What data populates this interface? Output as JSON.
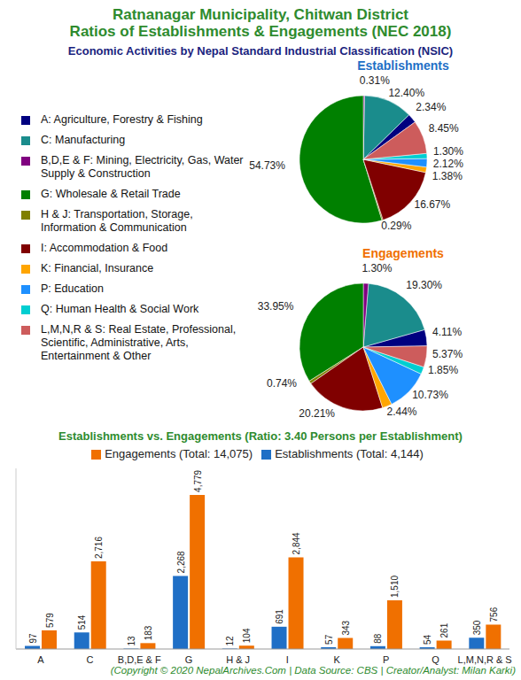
{
  "title_lines": [
    "Ratnanagar Municipality, Chitwan District",
    "Ratios of Establishments & Engagements (NEC 2018)"
  ],
  "subtitle": "Economic Activities by Nepal Standard Industrial Classification (NSIC)",
  "footer": "(Copyright © 2020 NepalArchives.Com | Data Source: CBS | Creator/Analyst: Milan Karki)",
  "chart_data": [
    {
      "type": "pie",
      "title": "Establishments",
      "categories": [
        "A: Agriculture, Forestry & Fishing",
        "C: Manufacturing",
        "B,D,E & F: Mining, Electricity, Gas, Water Supply & Construction",
        "G: Wholesale & Retail Trade",
        "H & J: Transportation, Storage, Information & Communication",
        "I: Accommodation & Food",
        "K: Financial, Insurance",
        "P: Education",
        "Q: Human Health & Social Work",
        "L,M,N,R & S: Real Estate, Professional, Scientific, Administrative, Arts, Entertainment & Other"
      ],
      "values": [
        2.34,
        12.4,
        0.31,
        54.73,
        0.29,
        16.67,
        1.38,
        2.12,
        1.3,
        8.45
      ],
      "value_labels": [
        "2.34%",
        "12.40%",
        "0.31%",
        "54.73%",
        "0.29%",
        "16.67%",
        "1.38%",
        "2.12%",
        "1.30%",
        "8.45%"
      ],
      "colors": [
        "#000080",
        "#1a8c8c",
        "#800080",
        "#008000",
        "#808000",
        "#800000",
        "#ffa500",
        "#1e90ff",
        "#00ced1",
        "#cd5c5c"
      ],
      "data_labels": true
    },
    {
      "type": "pie",
      "title": "Engagements",
      "categories": [
        "A: Agriculture, Forestry & Fishing",
        "C: Manufacturing",
        "B,D,E & F: Mining, Electricity, Gas, Water Supply & Construction",
        "G: Wholesale & Retail Trade",
        "H & J: Transportation, Storage, Information & Communication",
        "I: Accommodation & Food",
        "K: Financial, Insurance",
        "P: Education",
        "Q: Human Health & Social Work",
        "L,M,N,R & S: Real Estate, Professional, Scientific, Administrative, Arts, Entertainment & Other"
      ],
      "values": [
        4.11,
        19.3,
        1.3,
        33.95,
        0.74,
        20.21,
        2.44,
        10.73,
        1.85,
        5.37
      ],
      "value_labels": [
        "4.11%",
        "19.30%",
        "1.30%",
        "33.95%",
        "0.74%",
        "20.21%",
        "2.44%",
        "10.73%",
        "1.85%",
        "5.37%"
      ],
      "colors": [
        "#000080",
        "#1a8c8c",
        "#800080",
        "#008000",
        "#808000",
        "#800000",
        "#ffa500",
        "#1e90ff",
        "#00ced1",
        "#cd5c5c"
      ],
      "data_labels": true
    },
    {
      "type": "bar",
      "title": "Establishments vs. Engagements (Ratio: 3.40 Persons per Establishment)",
      "categories": [
        "A",
        "C",
        "B,D,E & F",
        "G",
        "H & J",
        "I",
        "K",
        "P",
        "Q",
        "L,M,N,R & S"
      ],
      "series": [
        {
          "name": "Establishments (Total: 4,144)",
          "color": "#1f6fc6",
          "values": [
            97,
            514,
            13,
            2268,
            12,
            691,
            57,
            88,
            54,
            350
          ],
          "value_labels": [
            "97",
            "514",
            "13",
            "2,268",
            "12",
            "691",
            "57",
            "88",
            "54",
            "350"
          ]
        },
        {
          "name": "Engagements (Total: 14,075)",
          "color": "#f07000",
          "values": [
            579,
            2716,
            183,
            4779,
            104,
            2844,
            343,
            1510,
            261,
            756
          ],
          "value_labels": [
            "579",
            "2,716",
            "183",
            "4,779",
            "104",
            "2,844",
            "343",
            "1,510",
            "261",
            "756"
          ]
        }
      ],
      "ylim": [
        0,
        5600
      ],
      "grid": false,
      "legend": "top",
      "data_labels": true,
      "tick_labels": "x"
    }
  ]
}
